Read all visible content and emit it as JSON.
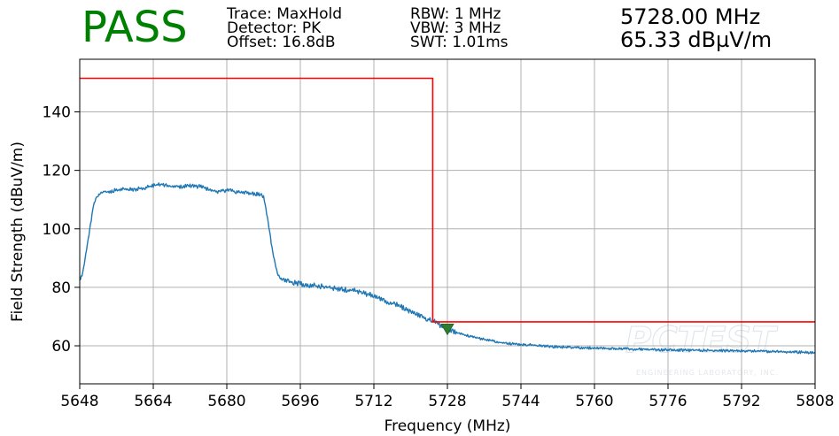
{
  "header": {
    "status": "PASS",
    "status_color": "#008000",
    "trace": "Trace: MaxHold",
    "detector": "Detector: PK",
    "offset": "Offset: 16.8dB",
    "rbw": "RBW: 1 MHz",
    "vbw": "VBW: 3 MHz",
    "swt": "SWT: 1.01ms",
    "marker_freq": "5728.00 MHz",
    "marker_level": "65.33 dBµV/m"
  },
  "watermark": {
    "name": "PCTEST",
    "tagline": "ENGINEERING LABORATORY, INC."
  },
  "chart_data": {
    "type": "line",
    "xlabel": "Frequency (MHz)",
    "ylabel": "Field Strength (dBuV/m)",
    "xlim": [
      5648,
      5808
    ],
    "ylim": [
      47,
      158
    ],
    "xticks": [
      5648,
      5664,
      5680,
      5696,
      5712,
      5728,
      5744,
      5760,
      5776,
      5792,
      5808
    ],
    "yticks": [
      60,
      80,
      100,
      120,
      140
    ],
    "grid": true,
    "series": [
      {
        "color": "#1f77b4",
        "x": [
          5648.0,
          5648.5,
          5649.0,
          5649.5,
          5650.0,
          5650.5,
          5651.0,
          5651.5,
          5652.0,
          5652.5,
          5653.0,
          5654.0,
          5656.0,
          5658.0,
          5660.0,
          5662.0,
          5664.0,
          5666.0,
          5668.0,
          5670.0,
          5672.0,
          5674.0,
          5676.0,
          5678.0,
          5680.0,
          5682.0,
          5684.0,
          5686.0,
          5687.5,
          5688.0,
          5688.5,
          5689.0,
          5689.5,
          5690.0,
          5690.5,
          5691.0,
          5691.5,
          5692.0,
          5693.0,
          5695.0,
          5697.0,
          5699.0,
          5701.0,
          5703.0,
          5705.0,
          5707.0,
          5709.0,
          5711.0,
          5713.0,
          5715.0,
          5717.0,
          5719.0,
          5721.0,
          5723.0,
          5724.0,
          5725.0,
          5726.0,
          5727.0,
          5728.0,
          5729.0,
          5730.0,
          5732.0,
          5734.0,
          5736.0,
          5738.0,
          5740.0,
          5742.0,
          5744.0,
          5747.0,
          5750.0,
          5754.0,
          5758.0,
          5762.0,
          5766.0,
          5770.0,
          5775.0,
          5780.0,
          5785.0,
          5790.0,
          5795.0,
          5800.0,
          5805.0,
          5808.0
        ],
        "y": [
          82.5,
          84,
          88,
          93,
          98,
          103,
          108,
          110.5,
          111.5,
          112.2,
          112.8,
          112.6,
          113.2,
          113.6,
          113.4,
          114.0,
          114.8,
          115.2,
          114.6,
          114.3,
          114.8,
          114.5,
          113.5,
          112.8,
          113.2,
          112.7,
          112.5,
          112.0,
          111.6,
          111.0,
          107,
          102,
          97,
          92,
          88,
          85,
          83.5,
          82.5,
          82.0,
          81.5,
          81.0,
          80.6,
          80.2,
          79.8,
          79.3,
          79.0,
          78.5,
          77.5,
          76.3,
          75.0,
          74.0,
          72.5,
          71.0,
          69.5,
          69.0,
          68.5,
          67.5,
          66.5,
          65.5,
          65.0,
          64.5,
          63.6,
          62.9,
          62.2,
          61.6,
          61.0,
          60.7,
          60.5,
          60.2,
          59.8,
          59.5,
          59.3,
          59.1,
          59.0,
          58.8,
          58.6,
          58.5,
          58.4,
          58.3,
          58.2,
          58.0,
          57.8,
          57.7
        ]
      },
      {
        "color": "#ff0000",
        "x": [
          5648,
          5724.8,
          5724.8,
          5808
        ],
        "y": [
          151.5,
          151.5,
          68.2,
          68.2
        ]
      }
    ],
    "marker": {
      "x": 5728,
      "y": 65.33,
      "color": "#2e7d32"
    }
  }
}
